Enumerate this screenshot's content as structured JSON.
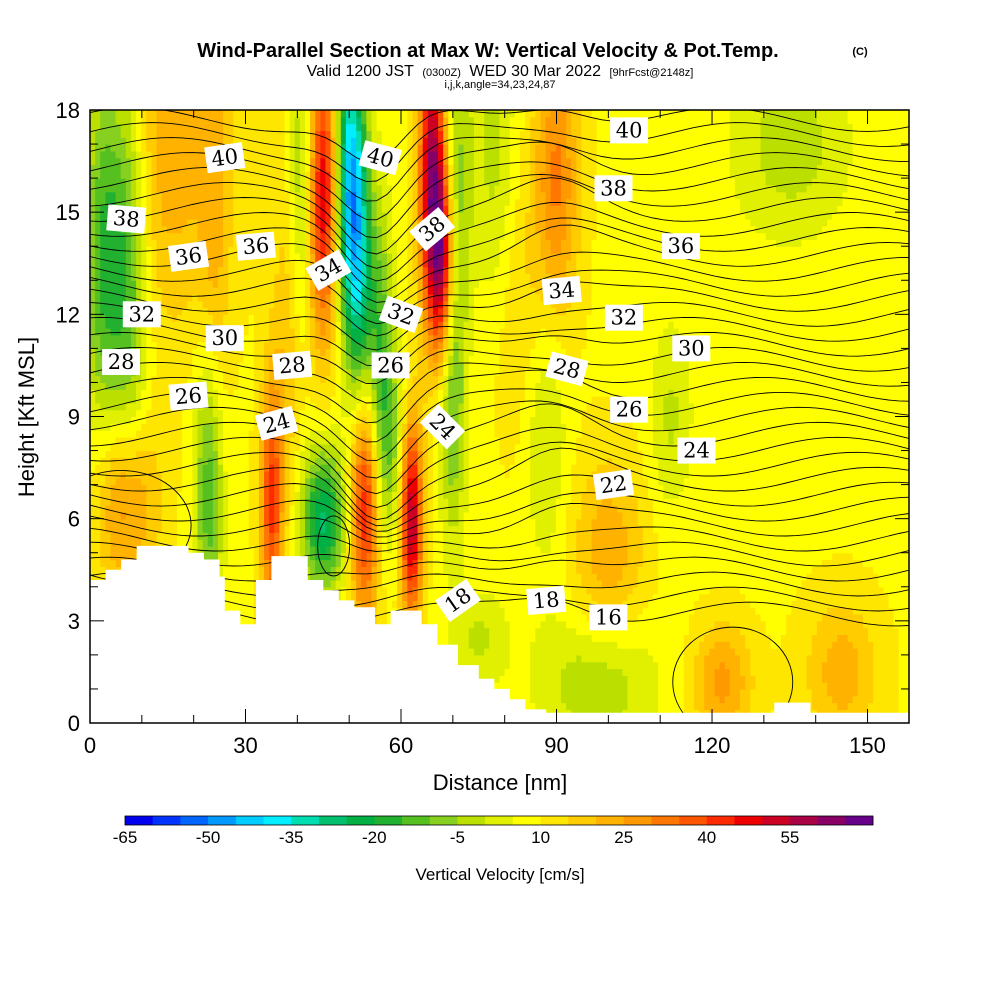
{
  "title": {
    "main": "Wind-Parallel Section at Max W: Vertical Velocity & Pot.Temp.",
    "copyright": "(C)",
    "valid_prefix": "Valid 1200 JST",
    "valid_z": "(0300Z)",
    "valid_date": "WED 30 Mar 2022",
    "forecast": "[9hrFcst@2148z]",
    "params": "i,j,k,angle=34,23,24,87"
  },
  "chart_data": {
    "type": "heatmap",
    "xlabel": "Distance [nm]",
    "ylabel": "Height [Kft MSL]",
    "xlim": [
      0,
      158
    ],
    "ylim": [
      0,
      18
    ],
    "x_ticks": [
      0,
      30,
      60,
      90,
      120,
      150
    ],
    "y_ticks": [
      0,
      3,
      6,
      9,
      12,
      15,
      18
    ],
    "colorbar": {
      "label": "Vertical Velocity [cm/s]",
      "tick_labels": [
        "-65",
        "-50",
        "-35",
        "-20",
        "-5",
        "10",
        "25",
        "40",
        "55"
      ],
      "colors": [
        "#0000ee",
        "#0033ff",
        "#0066ff",
        "#0099ff",
        "#00ccff",
        "#00eeff",
        "#00ddb0",
        "#00c070",
        "#00b045",
        "#22b030",
        "#55c020",
        "#88d020",
        "#bbe000",
        "#e0f000",
        "#ffff00",
        "#ffe600",
        "#ffcc00",
        "#ffb200",
        "#ff9900",
        "#ff7700",
        "#ff5500",
        "#ff2a00",
        "#ee0000",
        "#cc0022",
        "#aa0044",
        "#880066",
        "#660088"
      ]
    },
    "terrain": [
      [
        0,
        4.2
      ],
      [
        3,
        4.2
      ],
      [
        3,
        4.5
      ],
      [
        6,
        4.5
      ],
      [
        6,
        4.8
      ],
      [
        9,
        4.8
      ],
      [
        9,
        5.2
      ],
      [
        19,
        5.2
      ],
      [
        19,
        5.0
      ],
      [
        22,
        5.0
      ],
      [
        22,
        4.8
      ],
      [
        25,
        4.8
      ],
      [
        25,
        4.3
      ],
      [
        26,
        4.3
      ],
      [
        26,
        3.3
      ],
      [
        29,
        3.3
      ],
      [
        29,
        2.9
      ],
      [
        32,
        2.9
      ],
      [
        32,
        4.2
      ],
      [
        35,
        4.2
      ],
      [
        35,
        4.9
      ],
      [
        42,
        4.9
      ],
      [
        42,
        4.2
      ],
      [
        45,
        4.2
      ],
      [
        45,
        3.9
      ],
      [
        48,
        3.9
      ],
      [
        48,
        3.6
      ],
      [
        51,
        3.6
      ],
      [
        51,
        3.4
      ],
      [
        55,
        3.4
      ],
      [
        55,
        2.9
      ],
      [
        58,
        2.9
      ],
      [
        58,
        3.3
      ],
      [
        64,
        3.3
      ],
      [
        64,
        2.9
      ],
      [
        67,
        2.9
      ],
      [
        67,
        2.3
      ],
      [
        71,
        2.3
      ],
      [
        71,
        1.7
      ],
      [
        75,
        1.7
      ],
      [
        75,
        1.3
      ],
      [
        78,
        1.3
      ],
      [
        78,
        1.0
      ],
      [
        81,
        1.0
      ],
      [
        81,
        0.7
      ],
      [
        84,
        0.7
      ],
      [
        84,
        0.4
      ],
      [
        88,
        0.4
      ],
      [
        88,
        0.3
      ],
      [
        132,
        0.3
      ],
      [
        132,
        0.6
      ],
      [
        139,
        0.6
      ],
      [
        139,
        0.3
      ],
      [
        158,
        0.3
      ]
    ],
    "w_features": [
      {
        "x": 3,
        "z": 14,
        "w": -28,
        "sx": 3,
        "sz": 4
      },
      {
        "x": 8,
        "z": 13,
        "w": -20,
        "sx": 2.5,
        "sz": 5
      },
      {
        "x": 15,
        "z": 17,
        "w": 14,
        "sx": 8,
        "sz": 4
      },
      {
        "x": 7,
        "z": 6.5,
        "w": 25,
        "sx": 4,
        "sz": 2
      },
      {
        "x": 23,
        "z": 7,
        "w": -26,
        "sx": 2,
        "sz": 3
      },
      {
        "x": 24,
        "z": 13,
        "w": 10,
        "sx": 2,
        "sz": 5
      },
      {
        "x": 35,
        "z": 6.5,
        "w": 32,
        "sx": 1.5,
        "sz": 2.5
      },
      {
        "x": 38,
        "z": 11,
        "w": 10,
        "sx": 2,
        "sz": 4
      },
      {
        "x": 41,
        "z": 16,
        "w": -18,
        "sx": 1.8,
        "sz": 3
      },
      {
        "x": 45,
        "z": 15.5,
        "w": 42,
        "sx": 2.2,
        "sz": 3
      },
      {
        "x": 45,
        "z": 6,
        "w": -35,
        "sx": 3,
        "sz": 1.5
      },
      {
        "x": 50,
        "z": 16,
        "w": -48,
        "sx": 2,
        "sz": 3
      },
      {
        "x": 52,
        "z": 13,
        "w": -30,
        "sx": 1.8,
        "sz": 3
      },
      {
        "x": 53,
        "z": 6.5,
        "w": 38,
        "sx": 2,
        "sz": 2.5
      },
      {
        "x": 56,
        "z": 11,
        "w": -22,
        "sx": 1.8,
        "sz": 3
      },
      {
        "x": 58,
        "z": 8,
        "w": -15,
        "sx": 2,
        "sz": 2
      },
      {
        "x": 62,
        "z": 6,
        "w": 48,
        "sx": 1.5,
        "sz": 2
      },
      {
        "x": 66,
        "z": 16,
        "w": 50,
        "sx": 1.8,
        "sz": 3
      },
      {
        "x": 68,
        "z": 13.5,
        "w": 38,
        "sx": 1.6,
        "sz": 2
      },
      {
        "x": 70,
        "z": 9.5,
        "w": -20,
        "sx": 1.8,
        "sz": 3
      },
      {
        "x": 71,
        "z": 16,
        "w": -15,
        "sx": 2,
        "sz": 3
      },
      {
        "x": 78,
        "z": 16,
        "w": -12,
        "sx": 3,
        "sz": 4
      },
      {
        "x": 82,
        "z": 12,
        "w": 8,
        "sx": 5,
        "sz": 3
      },
      {
        "x": 88,
        "z": 9,
        "w": -12,
        "sx": 3,
        "sz": 3
      },
      {
        "x": 90,
        "z": 16,
        "w": 22,
        "sx": 3,
        "sz": 3
      },
      {
        "x": 100,
        "z": 5,
        "w": 15,
        "sx": 5,
        "sz": 2
      },
      {
        "x": 112,
        "z": 9,
        "w": -10,
        "sx": 3,
        "sz": 2
      },
      {
        "x": 135,
        "z": 17,
        "w": -12,
        "sx": 8,
        "sz": 2
      },
      {
        "x": 98,
        "z": 1.2,
        "w": -14,
        "sx": 8,
        "sz": 1.5
      },
      {
        "x": 122,
        "z": 1.2,
        "w": 18,
        "sx": 4,
        "sz": 1.2
      },
      {
        "x": 145,
        "z": 1.5,
        "w": 14,
        "sx": 5,
        "sz": 1.5
      },
      {
        "x": 75,
        "z": 2.5,
        "w": -10,
        "sx": 4,
        "sz": 1
      }
    ],
    "theta_labels": [
      {
        "text": "40",
        "x": 26,
        "z": 16.6,
        "rot": -8
      },
      {
        "text": "40",
        "x": 56,
        "z": 16.6,
        "rot": 15
      },
      {
        "text": "40",
        "x": 104,
        "z": 17.4,
        "rot": 0
      },
      {
        "text": "38",
        "x": 7,
        "z": 14.8,
        "rot": 5
      },
      {
        "text": "38",
        "x": 66,
        "z": 14.5,
        "rot": -40
      },
      {
        "text": "38",
        "x": 101,
        "z": 15.7,
        "rot": 0
      },
      {
        "text": "36",
        "x": 19,
        "z": 13.7,
        "rot": -8
      },
      {
        "text": "36",
        "x": 32,
        "z": 14.0,
        "rot": -5
      },
      {
        "text": "36",
        "x": 114,
        "z": 14.0,
        "rot": 0
      },
      {
        "text": "34",
        "x": 46,
        "z": 13.3,
        "rot": -30
      },
      {
        "text": "34",
        "x": 91,
        "z": 12.7,
        "rot": -5
      },
      {
        "text": "32",
        "x": 10,
        "z": 12.0,
        "rot": 0
      },
      {
        "text": "32",
        "x": 60,
        "z": 12.0,
        "rot": 20
      },
      {
        "text": "32",
        "x": 103,
        "z": 11.9,
        "rot": 0
      },
      {
        "text": "30",
        "x": 26,
        "z": 11.3,
        "rot": 0
      },
      {
        "text": "30",
        "x": 116,
        "z": 11.0,
        "rot": 0
      },
      {
        "text": "28",
        "x": 6,
        "z": 10.6,
        "rot": 0
      },
      {
        "text": "28",
        "x": 39,
        "z": 10.5,
        "rot": -5
      },
      {
        "text": "28",
        "x": 92,
        "z": 10.4,
        "rot": 15
      },
      {
        "text": "26",
        "x": 19,
        "z": 9.6,
        "rot": -5
      },
      {
        "text": "26",
        "x": 58,
        "z": 10.5,
        "rot": 0
      },
      {
        "text": "26",
        "x": 104,
        "z": 9.2,
        "rot": 0
      },
      {
        "text": "24",
        "x": 36,
        "z": 8.8,
        "rot": -15
      },
      {
        "text": "24",
        "x": 68,
        "z": 8.7,
        "rot": 45
      },
      {
        "text": "24",
        "x": 117,
        "z": 8.0,
        "rot": 0
      },
      {
        "text": "22",
        "x": 101,
        "z": 7.0,
        "rot": -8
      },
      {
        "text": "18",
        "x": 71,
        "z": 3.6,
        "rot": -35
      },
      {
        "text": "18",
        "x": 88,
        "z": 3.6,
        "rot": -5
      },
      {
        "text": "16",
        "x": 100,
        "z": 3.1,
        "rot": 0
      }
    ]
  }
}
